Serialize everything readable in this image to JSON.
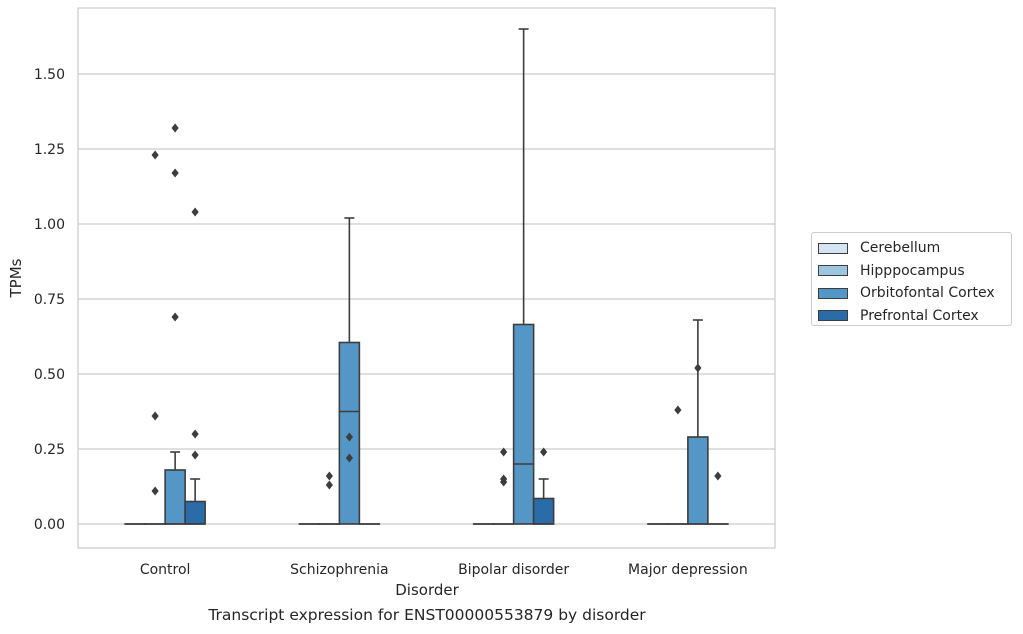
{
  "caption": "Transcript expression for ENST00000553879 by disorder",
  "chart_data": {
    "type": "box",
    "xlabel": "Disorder",
    "ylabel": "TPMs",
    "ylim": [
      -0.08,
      1.72
    ],
    "yticks": [
      0.0,
      0.25,
      0.5,
      0.75,
      1.0,
      1.25,
      1.5
    ],
    "ytick_labels": [
      "0.00",
      "0.25",
      "0.50",
      "0.75",
      "1.00",
      "1.25",
      "1.50"
    ],
    "grid": "horizontal",
    "legend_position": "right",
    "categories": [
      "Control",
      "Schizophrenia",
      "Bipolar disorder",
      "Major depression"
    ],
    "series": [
      {
        "name": "Cerebellum",
        "color": "#d4e4f2",
        "boxes": [
          {
            "category": "Control",
            "q1": 0,
            "median": 0,
            "q3": 0,
            "whisker_low": 0,
            "whisker_high": 0,
            "outliers": []
          },
          {
            "category": "Schizophrenia",
            "q1": 0,
            "median": 0,
            "q3": 0,
            "whisker_low": 0,
            "whisker_high": 0,
            "outliers": []
          },
          {
            "category": "Bipolar disorder",
            "q1": 0,
            "median": 0,
            "q3": 0,
            "whisker_low": 0,
            "whisker_high": 0,
            "outliers": []
          },
          {
            "category": "Major depression",
            "q1": 0,
            "median": 0,
            "q3": 0,
            "whisker_low": 0,
            "whisker_high": 0,
            "outliers": []
          }
        ]
      },
      {
        "name": "Hipppocampus",
        "color": "#9cc5df",
        "boxes": [
          {
            "category": "Control",
            "q1": 0,
            "median": 0,
            "q3": 0,
            "whisker_low": 0,
            "whisker_high": 0,
            "outliers": [
              0.11,
              0.36,
              1.23
            ]
          },
          {
            "category": "Schizophrenia",
            "q1": 0,
            "median": 0,
            "q3": 0,
            "whisker_low": 0,
            "whisker_high": 0,
            "outliers": [
              0.13,
              0.16
            ]
          },
          {
            "category": "Bipolar disorder",
            "q1": 0,
            "median": 0,
            "q3": 0,
            "whisker_low": 0,
            "whisker_high": 0,
            "outliers": [
              0.14,
              0.15,
              0.24
            ]
          },
          {
            "category": "Major depression",
            "q1": 0,
            "median": 0,
            "q3": 0,
            "whisker_low": 0,
            "whisker_high": 0,
            "outliers": [
              0.38
            ]
          }
        ]
      },
      {
        "name": "Orbitofontal Cortex",
        "color": "#5497c7",
        "boxes": [
          {
            "category": "Control",
            "q1": 0,
            "median": 0,
            "q3": 0.18,
            "whisker_low": 0,
            "whisker_high": 0.24,
            "outliers": [
              0.69,
              1.17,
              1.32
            ]
          },
          {
            "category": "Schizophrenia",
            "q1": 0,
            "median": 0.375,
            "q3": 0.605,
            "whisker_low": 0,
            "whisker_high": 1.02,
            "outliers": [
              0.22,
              0.29
            ]
          },
          {
            "category": "Bipolar disorder",
            "q1": 0,
            "median": 0.2,
            "q3": 0.665,
            "whisker_low": 0,
            "whisker_high": 1.65,
            "outliers": []
          },
          {
            "category": "Major depression",
            "q1": 0,
            "median": 0,
            "q3": 0.29,
            "whisker_low": 0,
            "whisker_high": 0.68,
            "outliers": [
              0.52
            ]
          }
        ]
      },
      {
        "name": "Prefrontal Cortex",
        "color": "#2a6ca8",
        "boxes": [
          {
            "category": "Control",
            "q1": 0,
            "median": 0,
            "q3": 0.075,
            "whisker_low": 0,
            "whisker_high": 0.15,
            "outliers": [
              0.23,
              0.3,
              1.04
            ]
          },
          {
            "category": "Schizophrenia",
            "q1": 0,
            "median": 0,
            "q3": 0,
            "whisker_low": 0,
            "whisker_high": 0,
            "outliers": []
          },
          {
            "category": "Bipolar disorder",
            "q1": 0,
            "median": 0,
            "q3": 0.085,
            "whisker_low": 0,
            "whisker_high": 0.15,
            "outliers": [
              0.24
            ]
          },
          {
            "category": "Major depression",
            "q1": 0,
            "median": 0,
            "q3": 0,
            "whisker_low": 0,
            "whisker_high": 0,
            "outliers": [
              0.16
            ]
          }
        ]
      }
    ]
  }
}
